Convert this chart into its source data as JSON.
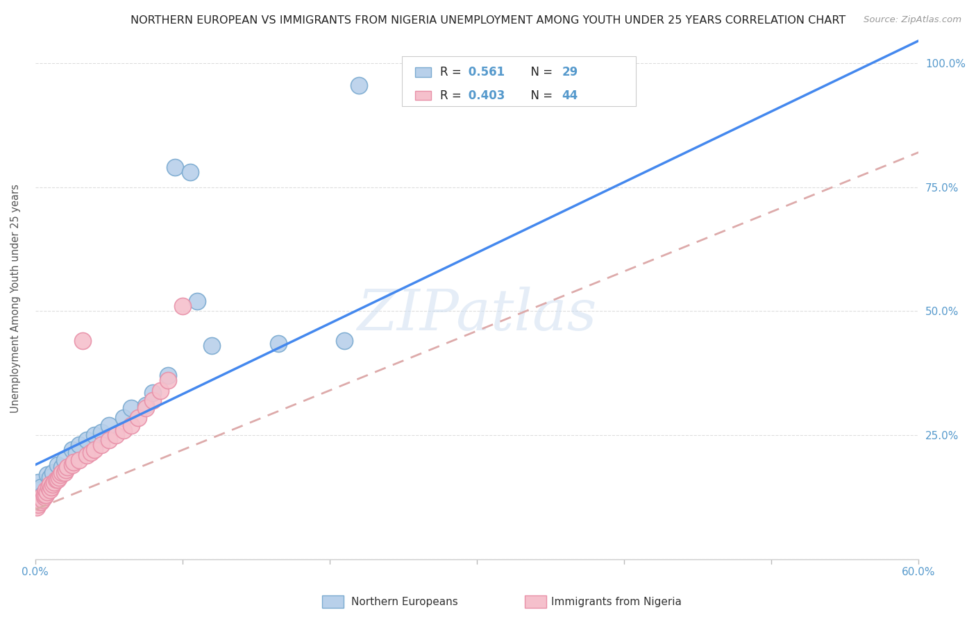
{
  "title": "NORTHERN EUROPEAN VS IMMIGRANTS FROM NIGERIA UNEMPLOYMENT AMONG YOUTH UNDER 25 YEARS CORRELATION CHART",
  "source": "Source: ZipAtlas.com",
  "ylabel": "Unemployment Among Youth under 25 years",
  "legend_label1": "Northern Europeans",
  "legend_label2": "Immigrants from Nigeria",
  "R1": 0.561,
  "N1": 29,
  "R2": 0.403,
  "N2": 44,
  "color_blue_fill": "#b8d0ea",
  "color_blue_edge": "#7aaad0",
  "color_pink_fill": "#f5c0cc",
  "color_pink_edge": "#e890a8",
  "color_trend_blue": "#4488ee",
  "color_trend_pink": "#ddaaaa",
  "watermark": "ZIPatlas",
  "blue_points_x": [
    0.002,
    0.003,
    0.004,
    0.005,
    0.008,
    0.01,
    0.012,
    0.015,
    0.018,
    0.02,
    0.025,
    0.028,
    0.03,
    0.035,
    0.04,
    0.045,
    0.05,
    0.06,
    0.065,
    0.075,
    0.08,
    0.09,
    0.095,
    0.105,
    0.11,
    0.12,
    0.165,
    0.21,
    0.22
  ],
  "blue_points_y": [
    0.155,
    0.14,
    0.145,
    0.13,
    0.17,
    0.165,
    0.175,
    0.19,
    0.185,
    0.2,
    0.22,
    0.215,
    0.23,
    0.24,
    0.25,
    0.255,
    0.27,
    0.285,
    0.305,
    0.31,
    0.335,
    0.37,
    0.79,
    0.78,
    0.52,
    0.43,
    0.435,
    0.44,
    0.955
  ],
  "pink_points_x": [
    0.001,
    0.002,
    0.003,
    0.003,
    0.004,
    0.004,
    0.005,
    0.006,
    0.006,
    0.007,
    0.007,
    0.008,
    0.009,
    0.01,
    0.01,
    0.011,
    0.012,
    0.013,
    0.014,
    0.015,
    0.016,
    0.017,
    0.018,
    0.02,
    0.021,
    0.022,
    0.025,
    0.026,
    0.03,
    0.032,
    0.035,
    0.038,
    0.04,
    0.045,
    0.05,
    0.055,
    0.06,
    0.065,
    0.07,
    0.075,
    0.08,
    0.085,
    0.09,
    0.1
  ],
  "pink_points_y": [
    0.105,
    0.11,
    0.115,
    0.12,
    0.115,
    0.125,
    0.12,
    0.125,
    0.13,
    0.13,
    0.14,
    0.135,
    0.145,
    0.14,
    0.15,
    0.145,
    0.15,
    0.155,
    0.16,
    0.16,
    0.165,
    0.17,
    0.175,
    0.175,
    0.18,
    0.185,
    0.19,
    0.195,
    0.2,
    0.44,
    0.21,
    0.215,
    0.22,
    0.23,
    0.24,
    0.25,
    0.26,
    0.27,
    0.285,
    0.305,
    0.32,
    0.34,
    0.36,
    0.51
  ],
  "trend_blue_x0": 0.0,
  "trend_blue_y0": 0.19,
  "trend_blue_x1": 0.6,
  "trend_blue_y1": 1.045,
  "trend_pink_x0": 0.0,
  "trend_pink_y0": 0.1,
  "trend_pink_x1": 0.6,
  "trend_pink_y1": 0.82,
  "xmin": 0.0,
  "xmax": 0.6,
  "ymin": 0.0,
  "ymax": 1.05,
  "xticks": [
    0.0,
    0.1,
    0.2,
    0.3,
    0.4,
    0.5,
    0.6
  ],
  "xticklabels": [
    "0.0%",
    "",
    "",
    "",
    "",
    "",
    "60.0%"
  ],
  "yticks_right": [
    0.0,
    0.25,
    0.5,
    0.75,
    1.0
  ],
  "yticklabels_right": [
    "",
    "25.0%",
    "50.0%",
    "75.0%",
    "100.0%"
  ],
  "tick_color": "#5599cc",
  "grid_color": "#dddddd",
  "title_fontsize": 11.5,
  "source_fontsize": 9.5,
  "axis_fontsize": 11,
  "legend_fontsize": 12
}
